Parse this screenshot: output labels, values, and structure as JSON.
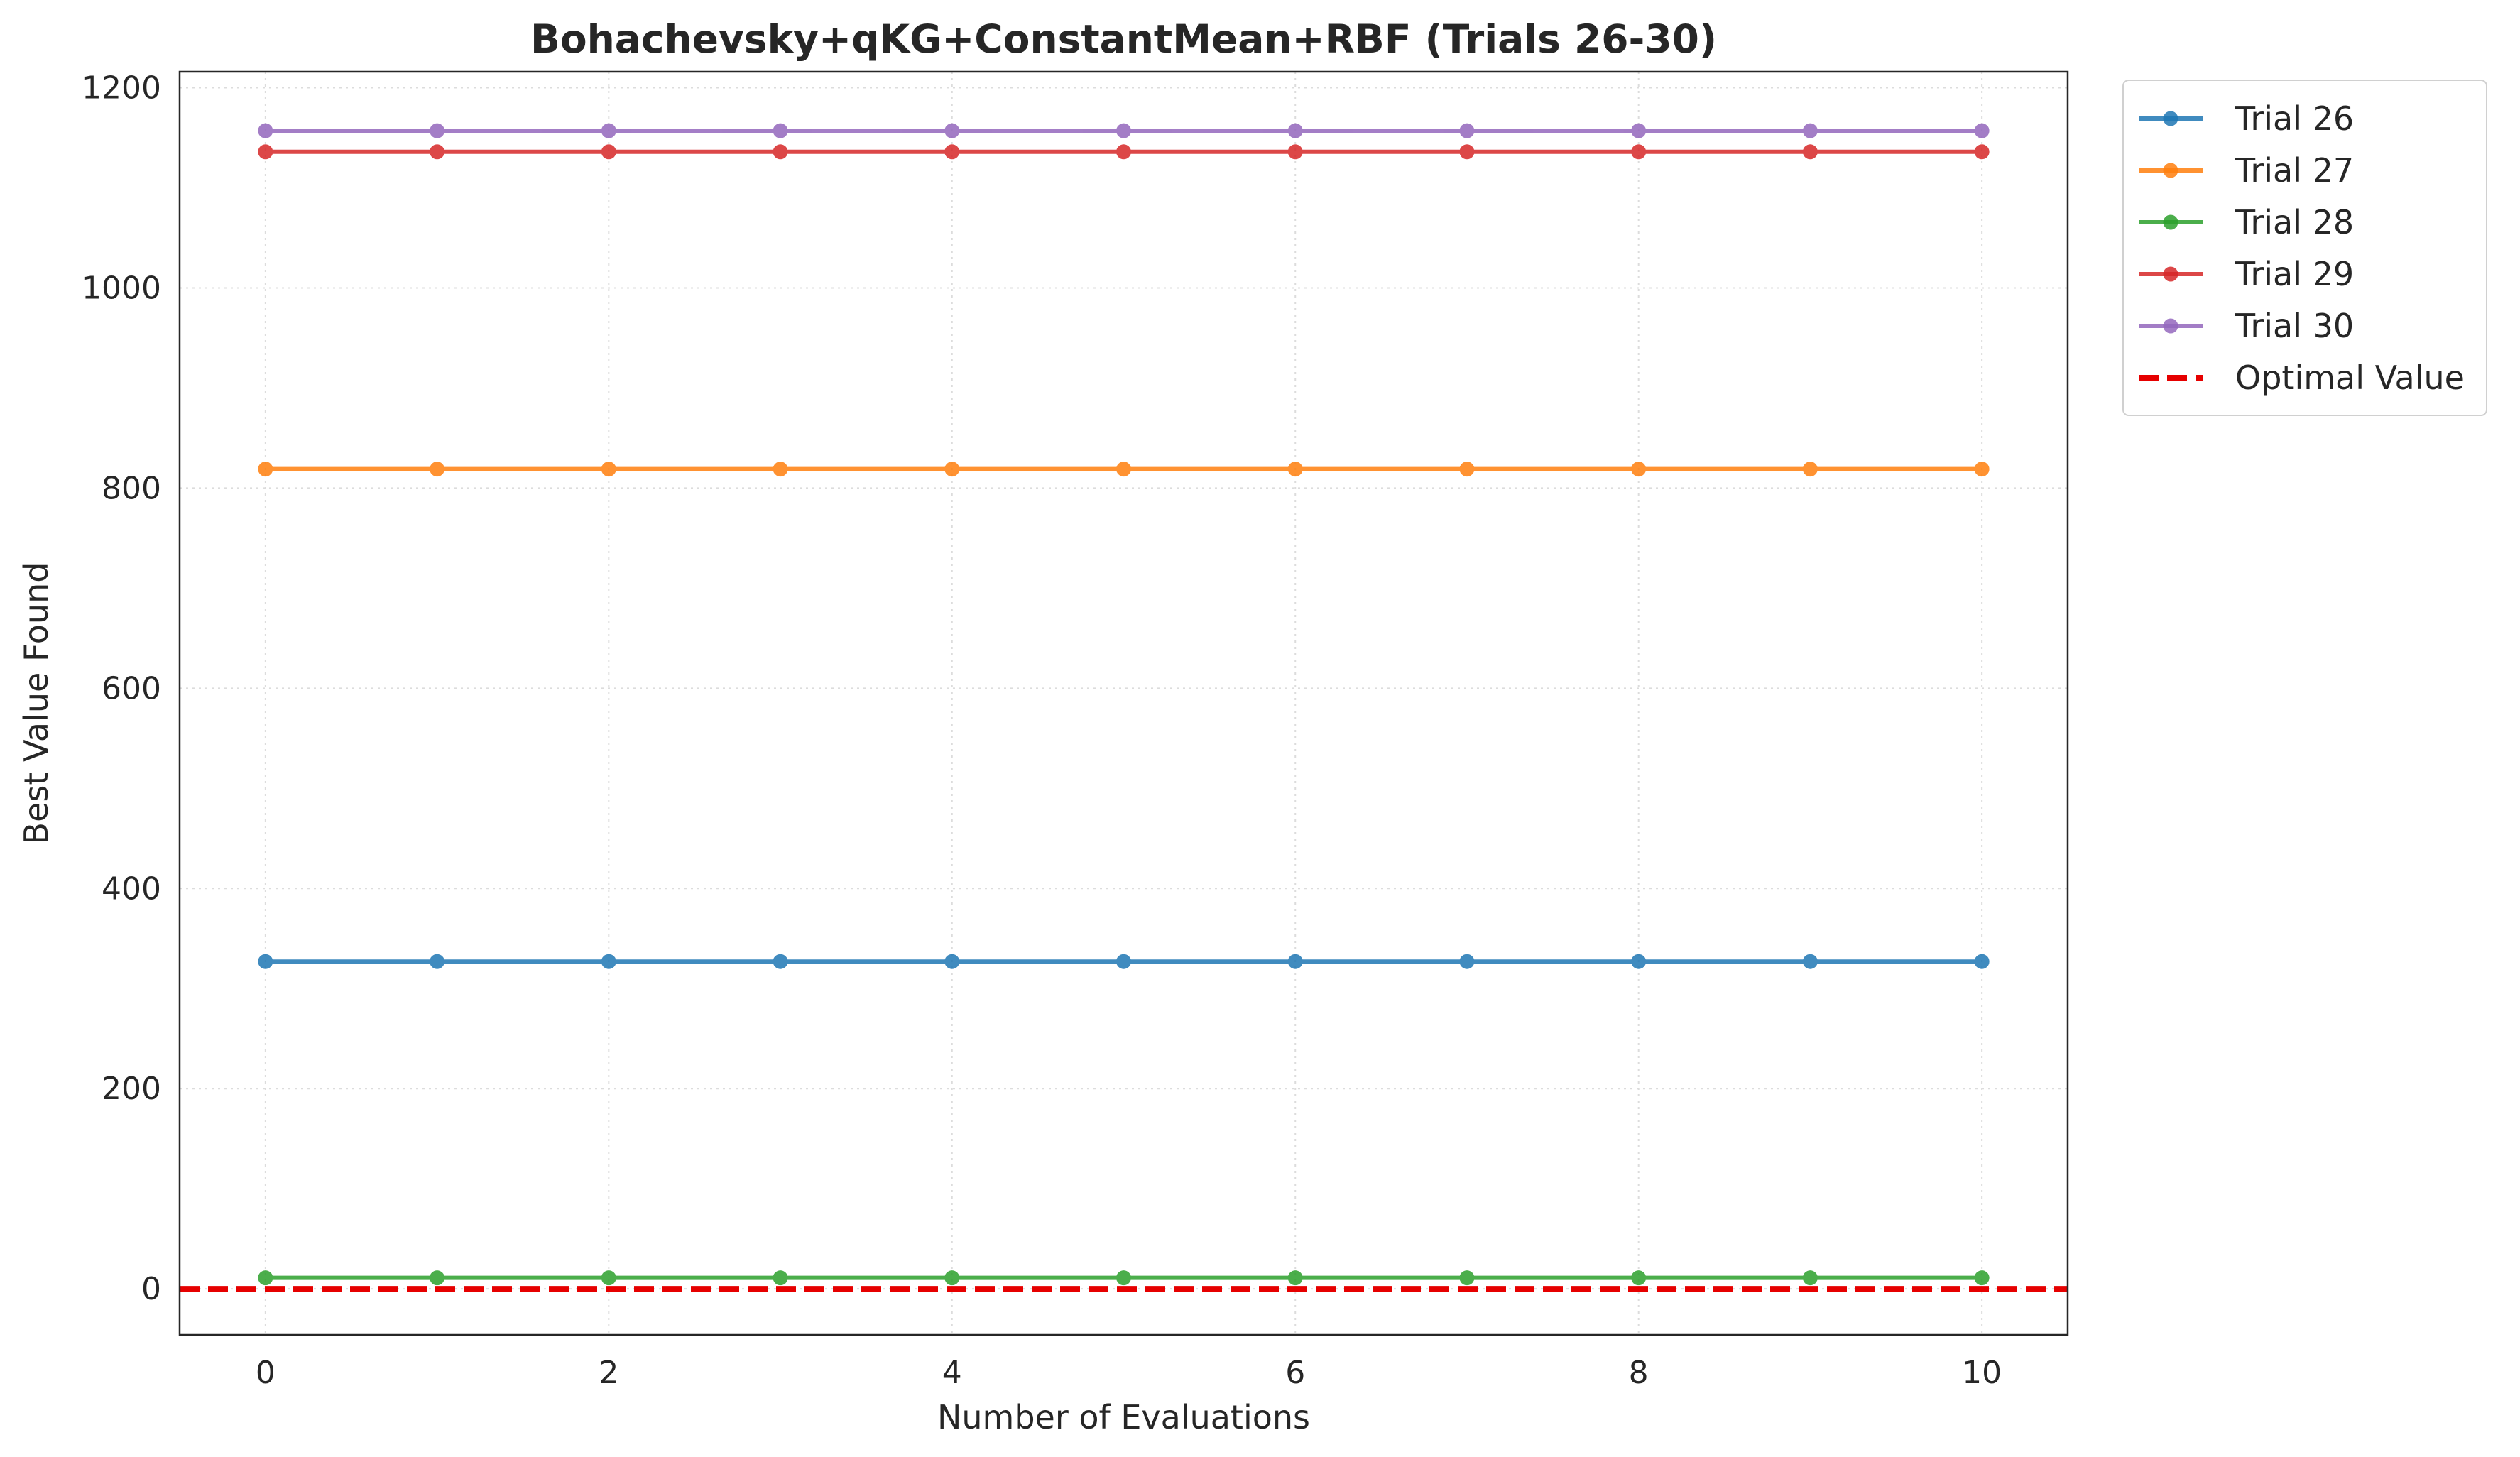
{
  "chart_data": {
    "type": "line",
    "title": "Bohachevsky+qKG+ConstantMean+RBF (Trials 26-30)",
    "xlabel": "Number of Evaluations",
    "ylabel": "Best Value Found",
    "xlim": [
      -0.5,
      10.5
    ],
    "ylim": [
      -46,
      1216
    ],
    "xticks": [
      0,
      2,
      4,
      6,
      8,
      10
    ],
    "yticks": [
      0,
      200,
      400,
      600,
      800,
      1000,
      1200
    ],
    "grid": true,
    "legend_position": "outside-upper-right",
    "x": [
      0,
      1,
      2,
      3,
      4,
      5,
      6,
      7,
      8,
      9,
      10
    ],
    "series": [
      {
        "name": "Trial 26",
        "color": "#1f77b4",
        "marker": "circle",
        "values": [
          327,
          327,
          327,
          327,
          327,
          327,
          327,
          327,
          327,
          327,
          327
        ]
      },
      {
        "name": "Trial 27",
        "color": "#ff7f0e",
        "marker": "circle",
        "values": [
          819,
          819,
          819,
          819,
          819,
          819,
          819,
          819,
          819,
          819,
          819
        ]
      },
      {
        "name": "Trial 28",
        "color": "#2ca02c",
        "marker": "circle",
        "values": [
          11,
          11,
          11,
          11,
          11,
          11,
          11,
          11,
          11,
          11,
          11
        ]
      },
      {
        "name": "Trial 29",
        "color": "#d62728",
        "marker": "circle",
        "values": [
          1136,
          1136,
          1136,
          1136,
          1136,
          1136,
          1136,
          1136,
          1136,
          1136,
          1136
        ]
      },
      {
        "name": "Trial 30",
        "color": "#9467bd",
        "marker": "circle",
        "values": [
          1157,
          1157,
          1157,
          1157,
          1157,
          1157,
          1157,
          1157,
          1157,
          1157,
          1157
        ]
      }
    ],
    "reference_lines": [
      {
        "name": "Optimal Value",
        "y": 0,
        "color": "#e60000",
        "style": "dashed"
      }
    ]
  }
}
